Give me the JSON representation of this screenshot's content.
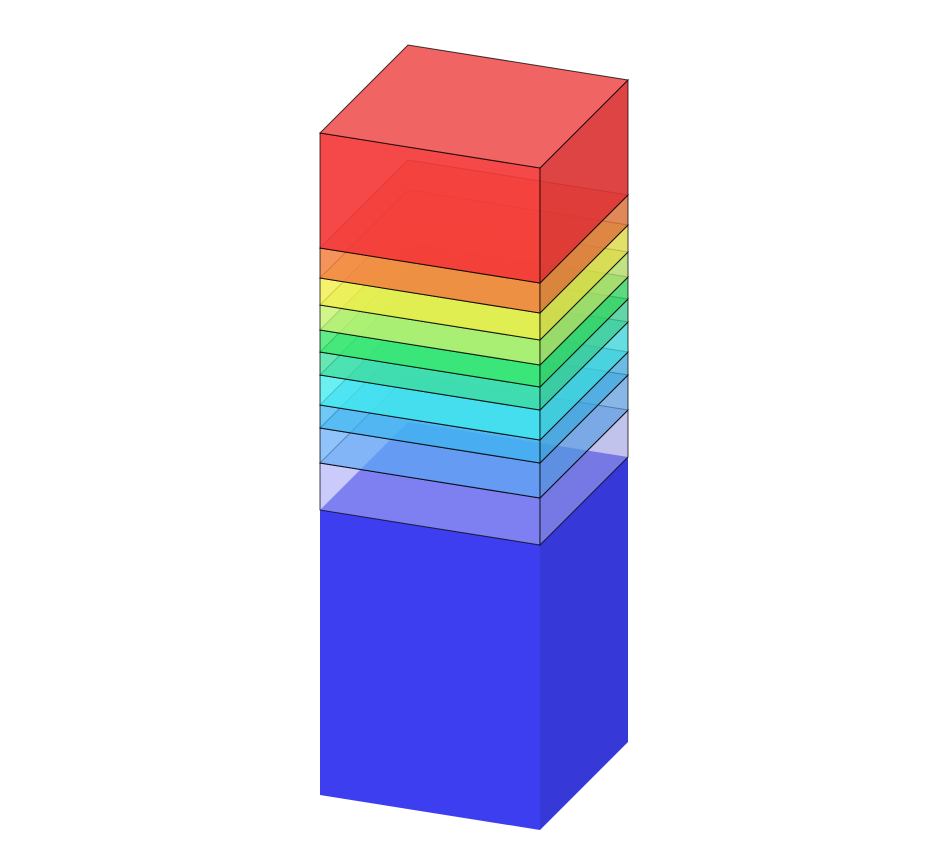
{
  "diagram": {
    "kind": "isometric-layer-stack",
    "layer_order": "bottom-to-top",
    "layers": [
      {
        "id": "blue-base",
        "color": "#3d3ef0"
      },
      {
        "id": "lavender",
        "color": "#9fa1f8"
      },
      {
        "id": "light-blue",
        "color": "#60aaf6"
      },
      {
        "id": "sky-blue",
        "color": "#3fb6f3"
      },
      {
        "id": "cyan",
        "color": "#40eaf0"
      },
      {
        "id": "aqua-green",
        "color": "#3edfa0"
      },
      {
        "id": "green",
        "color": "#38e86a"
      },
      {
        "id": "yellow-green",
        "color": "#c4f270"
      },
      {
        "id": "yellow",
        "color": "#f3f04a"
      },
      {
        "id": "orange",
        "color": "#f38040"
      },
      {
        "id": "red",
        "color": "#f43a3a"
      }
    ]
  }
}
